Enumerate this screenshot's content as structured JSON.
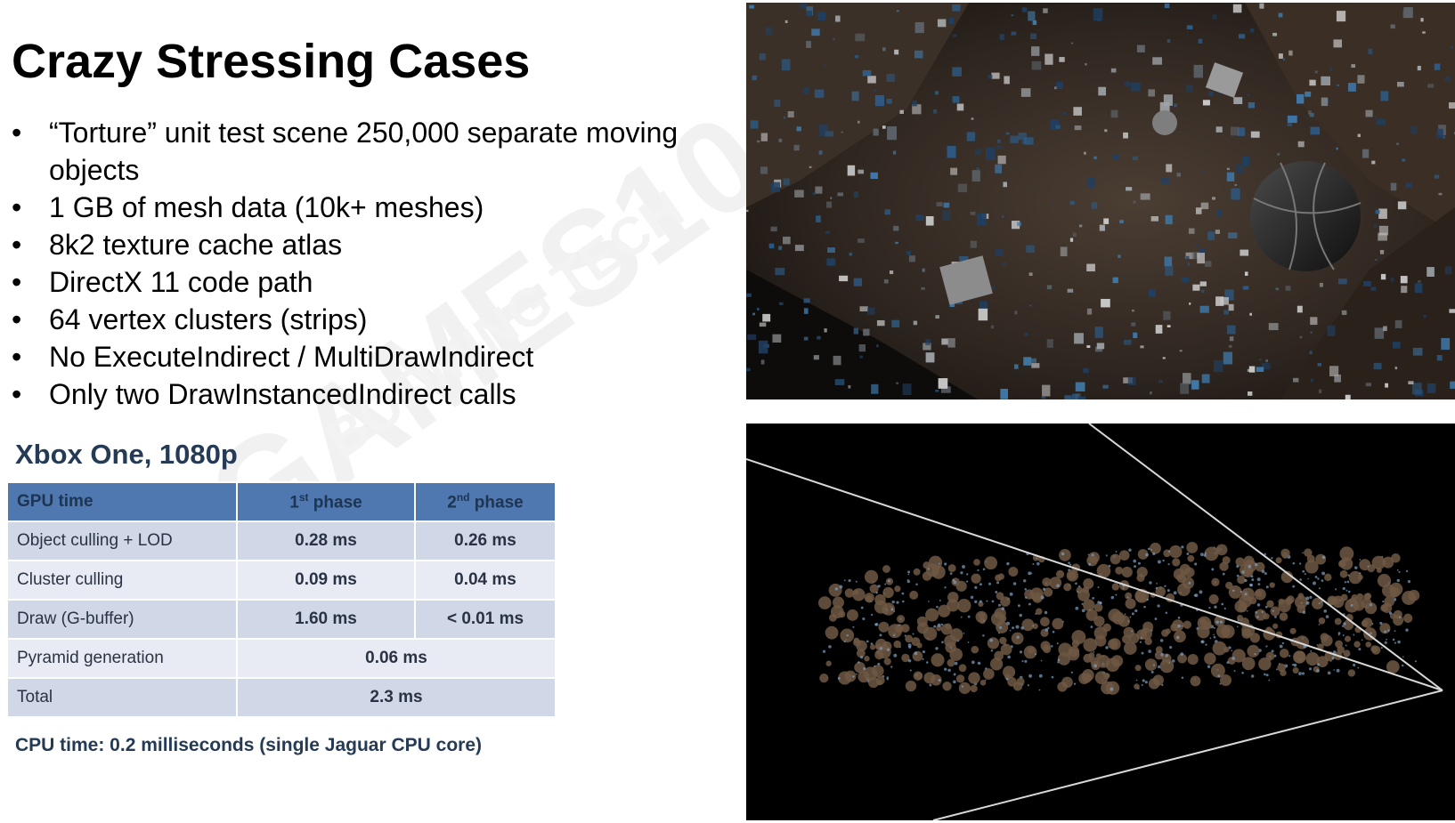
{
  "slide": {
    "title": "Crazy Stressing Cases",
    "bullets": [
      "“Torture” unit test scene 250,000 separate moving objects",
      "1 GB of mesh data (10k+ meshes)",
      "8k2 texture cache atlas",
      "DirectX 11 code path",
      "64 vertex clusters (strips)",
      "No ExecuteIndirect / MultiDrawIndirect",
      "Only two DrawInstancedIndirect calls"
    ],
    "bullet_symbol": "•",
    "subtitle": "Xbox One, 1080p",
    "footnote": "CPU time: 0.2 milliseconds (single Jaguar CPU core)"
  },
  "table": {
    "headers": {
      "col1": "GPU time",
      "col2_base": "1",
      "col2_sup": "st",
      "col2_rest": " phase",
      "col3_base": "2",
      "col3_sup": "nd",
      "col3_rest": " phase"
    },
    "rows": [
      {
        "label": "Object culling + LOD",
        "phase1": "0.28 ms",
        "phase2": "0.26 ms"
      },
      {
        "label": "Cluster culling",
        "phase1": "0.09 ms",
        "phase2": "0.04 ms"
      },
      {
        "label": "Draw (G-buffer)",
        "phase1": "1.60 ms",
        "phase2": "< 0.01 ms"
      },
      {
        "label": "Pyramid generation",
        "combined": "0.06 ms"
      },
      {
        "label": "Total",
        "combined": "2.3 ms"
      }
    ]
  },
  "watermark": {
    "lines": [
      "GAMES104",
      "BOOMING TECH"
    ]
  },
  "colors": {
    "header_bg": "#4f77b0",
    "row_dark": "#d0d7e6",
    "row_light": "#e8ebf3",
    "subtitle": "#243a55"
  }
}
